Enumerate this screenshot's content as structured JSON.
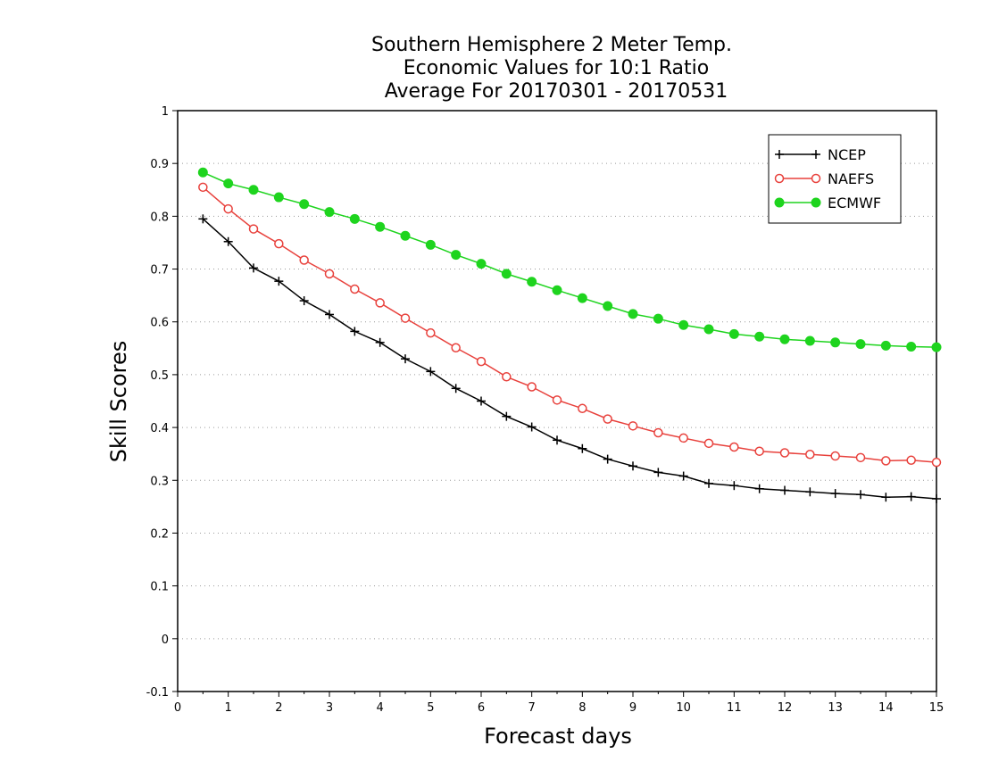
{
  "chart_data": {
    "type": "line",
    "title_lines": [
      "Southern Hemisphere 2 Meter Temp.",
      "Economic Values for 10:1 Ratio",
      "Average For 20170301 - 20170531"
    ],
    "xlabel": "Forecast days",
    "ylabel": "Skill Scores",
    "xlim": [
      0,
      15
    ],
    "ylim": [
      -0.1,
      1
    ],
    "xticks": [
      "0",
      "1",
      "2",
      "3",
      "4",
      "5",
      "6",
      "7",
      "8",
      "9",
      "10",
      "11",
      "12",
      "13",
      "14",
      "15"
    ],
    "yticks": [
      "-0.1",
      "0",
      "0.1",
      "0.2",
      "0.3",
      "0.4",
      "0.5",
      "0.6",
      "0.7",
      "0.8",
      "0.9",
      "1"
    ],
    "grid": true,
    "legend_position": "top-right",
    "x": [
      0.5,
      1,
      1.5,
      2,
      2.5,
      3,
      3.5,
      4,
      4.5,
      5,
      5.5,
      6,
      6.5,
      7,
      7.5,
      8,
      8.5,
      9,
      9.5,
      10,
      10.5,
      11,
      11.5,
      12,
      12.5,
      13,
      13.5,
      14,
      14.5,
      15
    ],
    "series": [
      {
        "name": "NCEP",
        "color": "#000000",
        "marker": "plus",
        "values": [
          0.795,
          0.752,
          0.702,
          0.677,
          0.64,
          0.614,
          0.582,
          0.561,
          0.53,
          0.506,
          0.474,
          0.45,
          0.421,
          0.401,
          0.376,
          0.36,
          0.34,
          0.327,
          0.315,
          0.308,
          0.294,
          0.29,
          0.284,
          0.281,
          0.278,
          0.275,
          0.273,
          0.268,
          0.269,
          0.265
        ]
      },
      {
        "name": "NAEFS",
        "color": "#e8413c",
        "marker": "open-circle",
        "values": [
          0.855,
          0.814,
          0.776,
          0.748,
          0.717,
          0.691,
          0.662,
          0.636,
          0.607,
          0.579,
          0.551,
          0.525,
          0.496,
          0.477,
          0.452,
          0.436,
          0.416,
          0.403,
          0.39,
          0.38,
          0.37,
          0.363,
          0.355,
          0.352,
          0.349,
          0.346,
          0.343,
          0.337,
          0.338,
          0.334
        ]
      },
      {
        "name": "ECMWF",
        "color": "#1ed41e",
        "marker": "filled-circle",
        "values": [
          0.883,
          0.862,
          0.85,
          0.836,
          0.823,
          0.808,
          0.795,
          0.78,
          0.763,
          0.746,
          0.727,
          0.71,
          0.691,
          0.676,
          0.66,
          0.645,
          0.63,
          0.615,
          0.606,
          0.594,
          0.586,
          0.577,
          0.572,
          0.567,
          0.564,
          0.561,
          0.558,
          0.555,
          0.553,
          0.552
        ]
      }
    ]
  }
}
